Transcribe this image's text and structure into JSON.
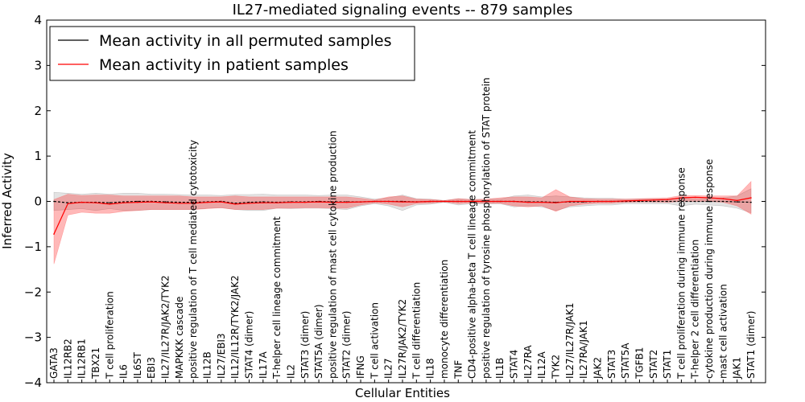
{
  "chart_data": {
    "type": "line",
    "title": "IL27-mediated signaling events -- 879 samples",
    "xlabel": "Cellular Entities",
    "ylabel": "Inferred Activity",
    "ylim": [
      -4,
      4
    ],
    "yticks": [
      -4,
      -3,
      -2,
      -1,
      0,
      1,
      2,
      3,
      4
    ],
    "ytick_labels": [
      "−4",
      "−3",
      "−2",
      "−1",
      "0",
      "1",
      "2",
      "3",
      "4"
    ],
    "grid": false,
    "legend_position": "top-left",
    "categories": [
      "GATA3",
      "IL12RB2",
      "IL12RB1",
      "TBX21",
      "T cell proliferation",
      "IL6",
      "IL6ST",
      "EBI3",
      "IL27/IL27R/JAK2/TYK2",
      "MAPKKK cascade",
      "positive regulation of T cell mediated cytotoxicity",
      "IL12B",
      "IL27/EBI3",
      "IL12/IL12R/TYK2/JAK2",
      "STAT4 (dimer)",
      "IL17A",
      "T-helper cell lineage commitment",
      "IL2",
      "STAT3 (dimer)",
      "STAT5A (dimer)",
      "positive regulation of mast cell cytokine production",
      "STAT2 (dimer)",
      "IFNG",
      "T cell activation",
      "IL27",
      "IL27R/JAK2/TYK2",
      "T cell differentiation",
      "IL18",
      "monocyte differentiation",
      "TNF",
      "CD4-positive alpha-beta T cell lineage commitment",
      "positive regulation of tyrosine phosphorylation of STAT protein",
      "IL1B",
      "STAT4",
      "IL27RA",
      "IL12A",
      "TYK2",
      "IL27/IL27R/JAK1",
      "IL27RA/JAK1",
      "JAK2",
      "STAT3",
      "STAT5A",
      "TGFB1",
      "STAT2",
      "STAT1",
      "T cell proliferation during immune response",
      "T-helper 2 cell differentiation",
      "cytokine production during immune response",
      "mast cell activation",
      "JAK1",
      "STAT1 (dimer)"
    ],
    "series": [
      {
        "name": "Mean activity in all permuted samples",
        "color": "#000000",
        "values": [
          0.0,
          -0.03,
          -0.02,
          -0.02,
          -0.03,
          -0.01,
          0.0,
          0.0,
          -0.01,
          -0.02,
          -0.02,
          -0.01,
          0.0,
          -0.04,
          -0.02,
          -0.01,
          -0.02,
          -0.01,
          -0.01,
          0.0,
          -0.01,
          -0.01,
          -0.01,
          0.0,
          0.0,
          0.0,
          -0.01,
          0.0,
          0.0,
          0.0,
          0.0,
          0.0,
          0.0,
          0.0,
          -0.01,
          -0.01,
          -0.02,
          -0.01,
          -0.01,
          0.0,
          0.0,
          0.0,
          0.0,
          0.0,
          0.0,
          0.0,
          0.0,
          0.0,
          0.0,
          -0.01,
          -0.02
        ],
        "lower": [
          -0.2,
          -0.18,
          -0.16,
          -0.2,
          -0.16,
          -0.2,
          -0.2,
          -0.18,
          -0.18,
          -0.18,
          -0.18,
          -0.15,
          -0.14,
          -0.18,
          -0.2,
          -0.2,
          -0.15,
          -0.16,
          -0.15,
          -0.15,
          -0.16,
          -0.18,
          -0.1,
          -0.05,
          -0.1,
          -0.2,
          -0.08,
          -0.06,
          -0.02,
          -0.08,
          -0.05,
          -0.06,
          -0.05,
          -0.12,
          -0.1,
          -0.12,
          -0.2,
          -0.12,
          -0.1,
          -0.08,
          -0.08,
          -0.05,
          -0.05,
          -0.05,
          -0.05,
          -0.1,
          -0.06,
          -0.08,
          -0.1,
          -0.15,
          -0.25
        ],
        "upper": [
          0.2,
          0.18,
          0.16,
          0.18,
          0.16,
          0.18,
          0.18,
          0.16,
          0.16,
          0.15,
          0.14,
          0.14,
          0.13,
          0.15,
          0.15,
          0.16,
          0.14,
          0.14,
          0.14,
          0.13,
          0.14,
          0.14,
          0.1,
          0.05,
          0.08,
          0.14,
          0.06,
          0.05,
          0.02,
          0.06,
          0.04,
          0.05,
          0.05,
          0.12,
          0.14,
          0.1,
          0.12,
          0.1,
          0.08,
          0.07,
          0.07,
          0.05,
          0.05,
          0.05,
          0.05,
          0.08,
          0.05,
          0.06,
          0.08,
          0.12,
          0.28
        ]
      },
      {
        "name": "Mean activity in patient samples",
        "color": "#ff0000",
        "values": [
          -0.72,
          -0.05,
          -0.02,
          -0.03,
          -0.06,
          -0.03,
          -0.02,
          -0.01,
          -0.03,
          -0.04,
          -0.04,
          -0.02,
          -0.01,
          -0.06,
          -0.04,
          -0.03,
          -0.03,
          -0.02,
          -0.02,
          -0.01,
          -0.02,
          -0.02,
          -0.01,
          0.0,
          0.0,
          -0.01,
          -0.01,
          0.0,
          0.0,
          0.0,
          0.0,
          0.0,
          0.0,
          0.0,
          -0.02,
          -0.02,
          -0.03,
          0.0,
          0.0,
          0.0,
          0.0,
          0.01,
          0.02,
          0.03,
          0.04,
          0.08,
          0.09,
          0.08,
          0.06,
          0.02,
          0.08
        ],
        "lower": [
          -1.38,
          -0.3,
          -0.24,
          -0.26,
          -0.26,
          -0.22,
          -0.2,
          -0.18,
          -0.18,
          -0.18,
          -0.18,
          -0.16,
          -0.14,
          -0.18,
          -0.18,
          -0.18,
          -0.15,
          -0.15,
          -0.14,
          -0.14,
          -0.15,
          -0.15,
          -0.08,
          -0.03,
          -0.06,
          -0.12,
          -0.05,
          -0.04,
          -0.01,
          -0.05,
          -0.03,
          -0.04,
          -0.04,
          -0.1,
          -0.12,
          -0.1,
          -0.22,
          -0.1,
          -0.06,
          -0.04,
          -0.04,
          -0.02,
          -0.01,
          -0.01,
          -0.02,
          0.0,
          0.0,
          0.0,
          -0.02,
          -0.1,
          -0.28
        ],
        "upper": [
          0.04,
          0.16,
          0.13,
          0.14,
          0.14,
          0.12,
          0.12,
          0.12,
          0.12,
          0.12,
          0.1,
          0.1,
          0.1,
          0.12,
          0.1,
          0.1,
          0.1,
          0.1,
          0.1,
          0.1,
          0.1,
          0.1,
          0.07,
          0.03,
          0.1,
          0.12,
          0.05,
          0.04,
          0.02,
          0.06,
          0.04,
          0.05,
          0.08,
          0.1,
          0.1,
          0.08,
          0.26,
          0.1,
          0.06,
          0.05,
          0.05,
          0.05,
          0.06,
          0.07,
          0.08,
          0.13,
          0.13,
          0.12,
          0.12,
          0.12,
          0.44
        ]
      }
    ]
  }
}
